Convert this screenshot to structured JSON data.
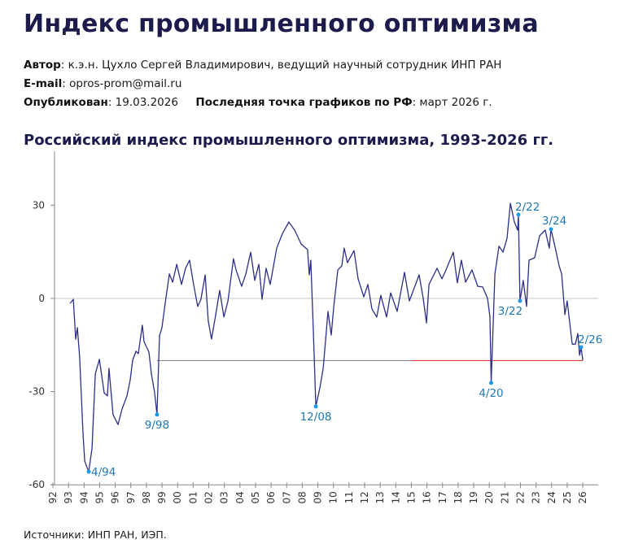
{
  "header": {
    "title": "Индекс промышленного оптимизма",
    "author_label": "Автор",
    "author_value": "к.э.н. Цухло Сергей Владимирович, ведущий научный сотрудник ИНП РАН",
    "email_label": "E-mail",
    "email_value": "opros-prom@mail.ru",
    "published_label": "Опубликован",
    "published_value": "19.03.2026",
    "last_point_label": "Последняя точка графиков по РФ",
    "last_point_value": "март 2026 г."
  },
  "footer": {
    "sources": "Источники: ИНП РАН, ИЭП."
  },
  "colors": {
    "series": "#2b2f8a",
    "annotation": "#1f78b4",
    "marker": "#1e9be8",
    "reference_line": "#e02020",
    "zero_line": "#d9d9d9"
  },
  "chart_data": {
    "type": "line",
    "title": "Российский индекс промышленного оптимизма, 1993-2026 гг.",
    "xlabel": "",
    "ylabel": "",
    "xlim": [
      1992,
      2027
    ],
    "ylim": [
      -60,
      40
    ],
    "yticks": [
      30,
      0,
      -30,
      -60
    ],
    "ytick_labels": [
      "30",
      "0",
      "-30",
      "-60"
    ],
    "xtick_labels": [
      "92",
      "93",
      "94",
      "95",
      "96",
      "97",
      "98",
      "99",
      "00",
      "01",
      "02",
      "03",
      "04",
      "05",
      "06",
      "07",
      "08",
      "09",
      "10",
      "11",
      "12",
      "13",
      "14",
      "15",
      "16",
      "17",
      "18",
      "19",
      "20",
      "21",
      "22",
      "23",
      "24",
      "25",
      "26"
    ],
    "reference_line": {
      "value": -20,
      "from": 1998.68,
      "to": 2026.0
    },
    "series": [
      {
        "name": "Индекс промышленного оптимизма",
        "points": [
          [
            1993.1,
            -1.6
          ],
          [
            1993.31,
            -0.3
          ],
          [
            1993.46,
            -13.1
          ],
          [
            1993.57,
            -9.4
          ],
          [
            1993.72,
            -19.1
          ],
          [
            1993.93,
            -43.5
          ],
          [
            1994.04,
            -52.4
          ],
          [
            1994.3,
            -55.8
          ],
          [
            1994.51,
            -48.2
          ],
          [
            1994.72,
            -24.3
          ],
          [
            1994.98,
            -19.6
          ],
          [
            1995.29,
            -30.4
          ],
          [
            1995.5,
            -31.4
          ],
          [
            1995.6,
            -22.5
          ],
          [
            1995.86,
            -37.4
          ],
          [
            1996.18,
            -40.6
          ],
          [
            1996.44,
            -35.6
          ],
          [
            1996.75,
            -31.4
          ],
          [
            1996.96,
            -26.2
          ],
          [
            1997.12,
            -19.9
          ],
          [
            1997.33,
            -17.0
          ],
          [
            1997.48,
            -17.8
          ],
          [
            1997.74,
            -8.6
          ],
          [
            1997.85,
            -13.9
          ],
          [
            1998.16,
            -17.3
          ],
          [
            1998.32,
            -24.3
          ],
          [
            1998.53,
            -30.4
          ],
          [
            1998.68,
            -37.4
          ],
          [
            1998.84,
            -12.0
          ],
          [
            1999.0,
            -9.4
          ],
          [
            1999.21,
            -1.3
          ],
          [
            1999.47,
            7.9
          ],
          [
            1999.68,
            5.2
          ],
          [
            1999.94,
            11.0
          ],
          [
            2000.25,
            4.5
          ],
          [
            2000.51,
            9.7
          ],
          [
            2000.77,
            12.3
          ],
          [
            2001.03,
            4.5
          ],
          [
            2001.29,
            -2.6
          ],
          [
            2001.5,
            -0.3
          ],
          [
            2001.77,
            7.6
          ],
          [
            2001.97,
            -7.3
          ],
          [
            2002.18,
            -13.1
          ],
          [
            2002.44,
            -5.5
          ],
          [
            2002.7,
            2.6
          ],
          [
            2002.97,
            -6.0
          ],
          [
            2003.23,
            -0.8
          ],
          [
            2003.59,
            12.8
          ],
          [
            2003.75,
            9.2
          ],
          [
            2004.11,
            3.9
          ],
          [
            2004.38,
            7.9
          ],
          [
            2004.69,
            14.9
          ],
          [
            2004.95,
            5.8
          ],
          [
            2005.21,
            11.0
          ],
          [
            2005.42,
            -0.3
          ],
          [
            2005.68,
            9.7
          ],
          [
            2005.94,
            4.5
          ],
          [
            2006.36,
            16.2
          ],
          [
            2006.73,
            20.9
          ],
          [
            2007.14,
            24.6
          ],
          [
            2007.51,
            22.0
          ],
          [
            2007.93,
            17.5
          ],
          [
            2008.34,
            15.7
          ],
          [
            2008.45,
            7.6
          ],
          [
            2008.55,
            12.3
          ],
          [
            2008.71,
            -10.5
          ],
          [
            2008.87,
            -34.8
          ],
          [
            2009.13,
            -28.8
          ],
          [
            2009.34,
            -22.5
          ],
          [
            2009.49,
            -13.9
          ],
          [
            2009.65,
            -4.2
          ],
          [
            2009.86,
            -11.8
          ],
          [
            2010.02,
            -2.6
          ],
          [
            2010.28,
            9.2
          ],
          [
            2010.54,
            10.5
          ],
          [
            2010.69,
            16.2
          ],
          [
            2010.9,
            11.5
          ],
          [
            2011.32,
            15.4
          ],
          [
            2011.58,
            6.3
          ],
          [
            2011.95,
            0.5
          ],
          [
            2012.21,
            4.5
          ],
          [
            2012.47,
            -3.4
          ],
          [
            2012.78,
            -6.0
          ],
          [
            2013.04,
            1.0
          ],
          [
            2013.41,
            -6.0
          ],
          [
            2013.67,
            1.8
          ],
          [
            2014.09,
            -4.2
          ],
          [
            2014.56,
            8.4
          ],
          [
            2014.87,
            -0.8
          ],
          [
            2015.13,
            2.6
          ],
          [
            2015.5,
            7.6
          ],
          [
            2015.76,
            0.0
          ],
          [
            2015.97,
            -7.9
          ],
          [
            2016.13,
            4.5
          ],
          [
            2016.65,
            9.7
          ],
          [
            2016.96,
            6.3
          ],
          [
            2017.22,
            9.2
          ],
          [
            2017.69,
            14.9
          ],
          [
            2017.95,
            5.0
          ],
          [
            2018.21,
            12.3
          ],
          [
            2018.48,
            5.2
          ],
          [
            2018.89,
            9.2
          ],
          [
            2019.26,
            3.9
          ],
          [
            2019.57,
            3.7
          ],
          [
            2019.89,
            0.0
          ],
          [
            2020.04,
            -6.0
          ],
          [
            2020.12,
            -27.2
          ],
          [
            2020.36,
            7.9
          ],
          [
            2020.62,
            16.8
          ],
          [
            2020.88,
            14.9
          ],
          [
            2021.14,
            19.4
          ],
          [
            2021.35,
            30.6
          ],
          [
            2021.61,
            24.6
          ],
          [
            2021.82,
            22.0
          ],
          [
            2021.87,
            27.0
          ],
          [
            2021.97,
            -0.8
          ],
          [
            2022.18,
            5.8
          ],
          [
            2022.39,
            -2.6
          ],
          [
            2022.55,
            12.3
          ],
          [
            2022.91,
            13.1
          ],
          [
            2023.23,
            20.2
          ],
          [
            2023.59,
            22.0
          ],
          [
            2023.85,
            16.2
          ],
          [
            2023.96,
            22.3
          ],
          [
            2024.27,
            15.4
          ],
          [
            2024.48,
            10.5
          ],
          [
            2024.64,
            7.9
          ],
          [
            2024.85,
            -5.2
          ],
          [
            2025.0,
            -0.8
          ],
          [
            2025.32,
            -14.7
          ],
          [
            2025.52,
            -14.7
          ],
          [
            2025.68,
            -11.3
          ],
          [
            2025.79,
            -18.3
          ],
          [
            2025.89,
            -15.7
          ],
          [
            2026.0,
            -19.9
          ]
        ]
      }
    ],
    "annotations": [
      {
        "label": "4/94",
        "x": 1994.3,
        "y": -55.8,
        "pos": "right"
      },
      {
        "label": "9/98",
        "x": 1998.68,
        "y": -37.4,
        "pos": "below"
      },
      {
        "label": "12/08",
        "x": 2008.87,
        "y": -34.8,
        "pos": "below"
      },
      {
        "label": "4/20",
        "x": 2020.12,
        "y": -27.2,
        "pos": "below"
      },
      {
        "label": "2/22",
        "x": 2021.87,
        "y": 27.0,
        "pos": "right-top"
      },
      {
        "label": "3/22",
        "x": 2021.97,
        "y": -0.8,
        "pos": "below-left"
      },
      {
        "label": "3/24",
        "x": 2023.96,
        "y": 22.3,
        "pos": "above"
      },
      {
        "label": "2/26",
        "x": 2025.89,
        "y": -15.7,
        "pos": "right-top"
      }
    ]
  }
}
